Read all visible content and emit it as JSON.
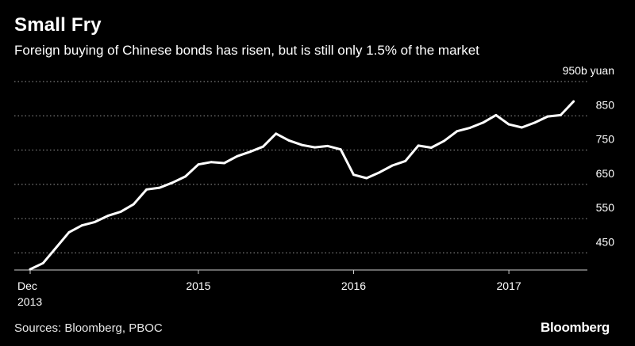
{
  "header": {
    "title": "Small Fry",
    "subtitle": "Foreign buying of Chinese bonds has risen, but is still only 1.5% of the market"
  },
  "footer": {
    "source": "Sources: Bloomberg, PBOC",
    "brand": "Bloomberg"
  },
  "colors": {
    "background": "#000000",
    "line": "#ffffff",
    "grid": "#9a9a9a"
  },
  "chart_data": {
    "type": "line",
    "title": "Small Fry",
    "subtitle": "Foreign buying of Chinese bonds has risen, but is still only 1.5% of the market",
    "xlabel": "",
    "ylabel": "",
    "ylim": [
      400,
      950
    ],
    "y_ticks": [
      450,
      550,
      650,
      750,
      850,
      950
    ],
    "y_tick_labels": [
      "450",
      "550",
      "650",
      "750",
      "850",
      "950b yuan"
    ],
    "x_ticks": [
      {
        "month": 0,
        "label": "Dec",
        "sub": "2013"
      },
      {
        "month": 13,
        "label": "2015",
        "sub": ""
      },
      {
        "month": 25,
        "label": "2016",
        "sub": ""
      },
      {
        "month": 37,
        "label": "2017",
        "sub": ""
      }
    ],
    "grid": "horizontal dotted",
    "series": [
      {
        "values": [
          402,
          420,
          465,
          510,
          530,
          540,
          558,
          570,
          592,
          635,
          640,
          655,
          673,
          708,
          715,
          712,
          732,
          745,
          760,
          798,
          778,
          765,
          758,
          762,
          752,
          678,
          668,
          685,
          705,
          718,
          763,
          757,
          777,
          805,
          815,
          830,
          852,
          825,
          816,
          830,
          848,
          852,
          892
        ]
      }
    ]
  }
}
